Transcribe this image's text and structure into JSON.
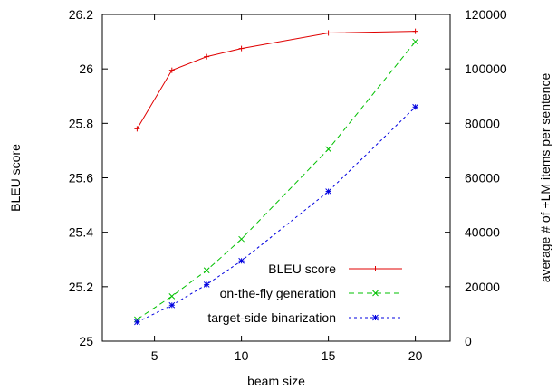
{
  "chart_data": {
    "type": "line",
    "title": "",
    "xlabel": "beam size",
    "ylabel": "BLEU score",
    "y2label": "average # of +LM items per sentence",
    "xlim": [
      2,
      22
    ],
    "ylim": [
      25,
      26.2
    ],
    "y2lim": [
      0,
      120000
    ],
    "x_ticks": [
      "5",
      "10",
      "15",
      "20"
    ],
    "y_ticks": [
      "25",
      "25.2",
      "25.4",
      "25.6",
      "25.8",
      "26",
      "26.2"
    ],
    "y2_ticks": [
      "0",
      "20000",
      "40000",
      "60000",
      "80000",
      "100000",
      "120000"
    ],
    "grid": false,
    "legend_position": "bottom-right",
    "series": [
      {
        "name": "BLEU score",
        "axis": "left",
        "color": "#e00000",
        "line_style": "solid",
        "marker": "plus",
        "x": [
          4,
          6,
          8,
          10,
          15,
          20
        ],
        "values": [
          25.78,
          25.995,
          26.045,
          26.075,
          26.132,
          26.138
        ]
      },
      {
        "name": "on-the-fly generation",
        "axis": "right",
        "color": "#00c000",
        "line_style": "dashed",
        "marker": "cross",
        "x": [
          4,
          6,
          8,
          10,
          15,
          20
        ],
        "values": [
          8000,
          16500,
          26000,
          37500,
          70500,
          110000
        ]
      },
      {
        "name": "target-side binarization",
        "axis": "right",
        "color": "#0000e0",
        "line_style": "dotted",
        "marker": "star",
        "x": [
          4,
          6,
          8,
          10,
          15,
          20
        ],
        "values": [
          7000,
          13200,
          20800,
          29500,
          55000,
          86000
        ]
      }
    ]
  }
}
